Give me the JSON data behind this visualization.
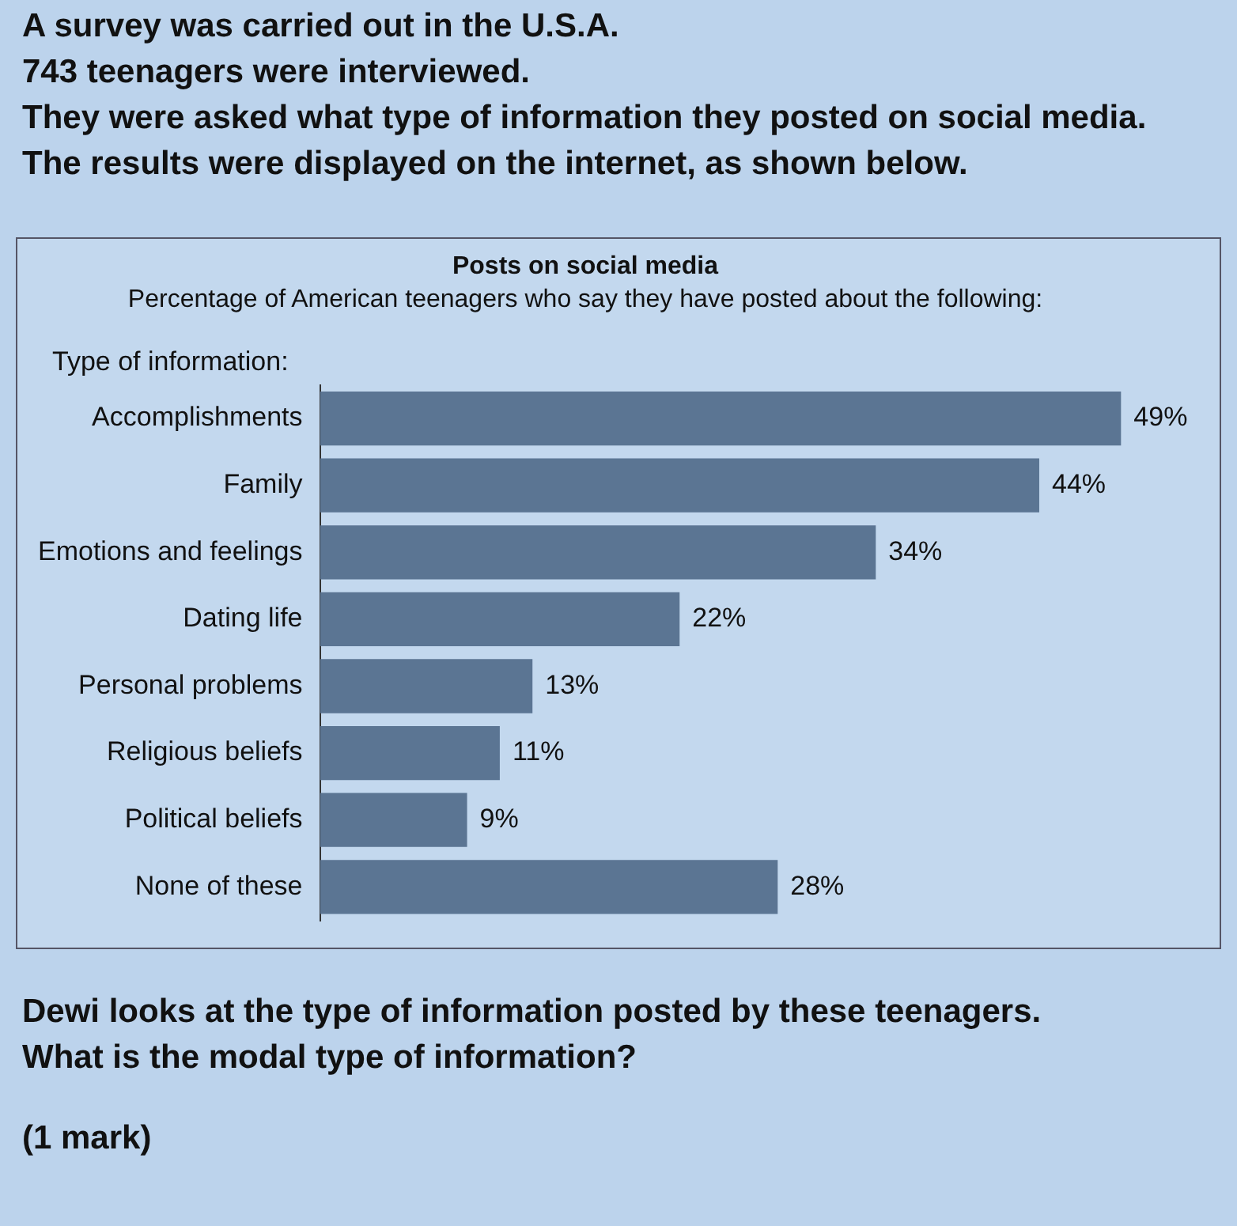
{
  "chart_data": {
    "type": "bar",
    "orientation": "horizontal",
    "title": "Posts on social media",
    "subtitle": "Percentage of American teenagers who say they have posted about the following:",
    "ylabel": "Type of information:",
    "categories": [
      "Accomplishments",
      "Family",
      "Emotions and feelings",
      "Dating life",
      "Personal problems",
      "Religious beliefs",
      "Political beliefs",
      "None of these"
    ],
    "values": [
      49,
      44,
      34,
      22,
      13,
      11,
      9,
      28
    ],
    "value_labels": [
      "49%",
      "44%",
      "34%",
      "22%",
      "13%",
      "11%",
      "9%",
      "28%"
    ],
    "color": "#5b7593",
    "legend": false,
    "annotations": [
      "A survey was carried out in the U.S.A.",
      "743 teenagers were interviewed.",
      "They were asked what type of information they posted on social media.",
      "The results were displayed on the internet, as shown below.",
      "Dewi looks at the type of information posted by these teenagers.",
      "What is the modal type of information?",
      "(1 mark)"
    ]
  }
}
